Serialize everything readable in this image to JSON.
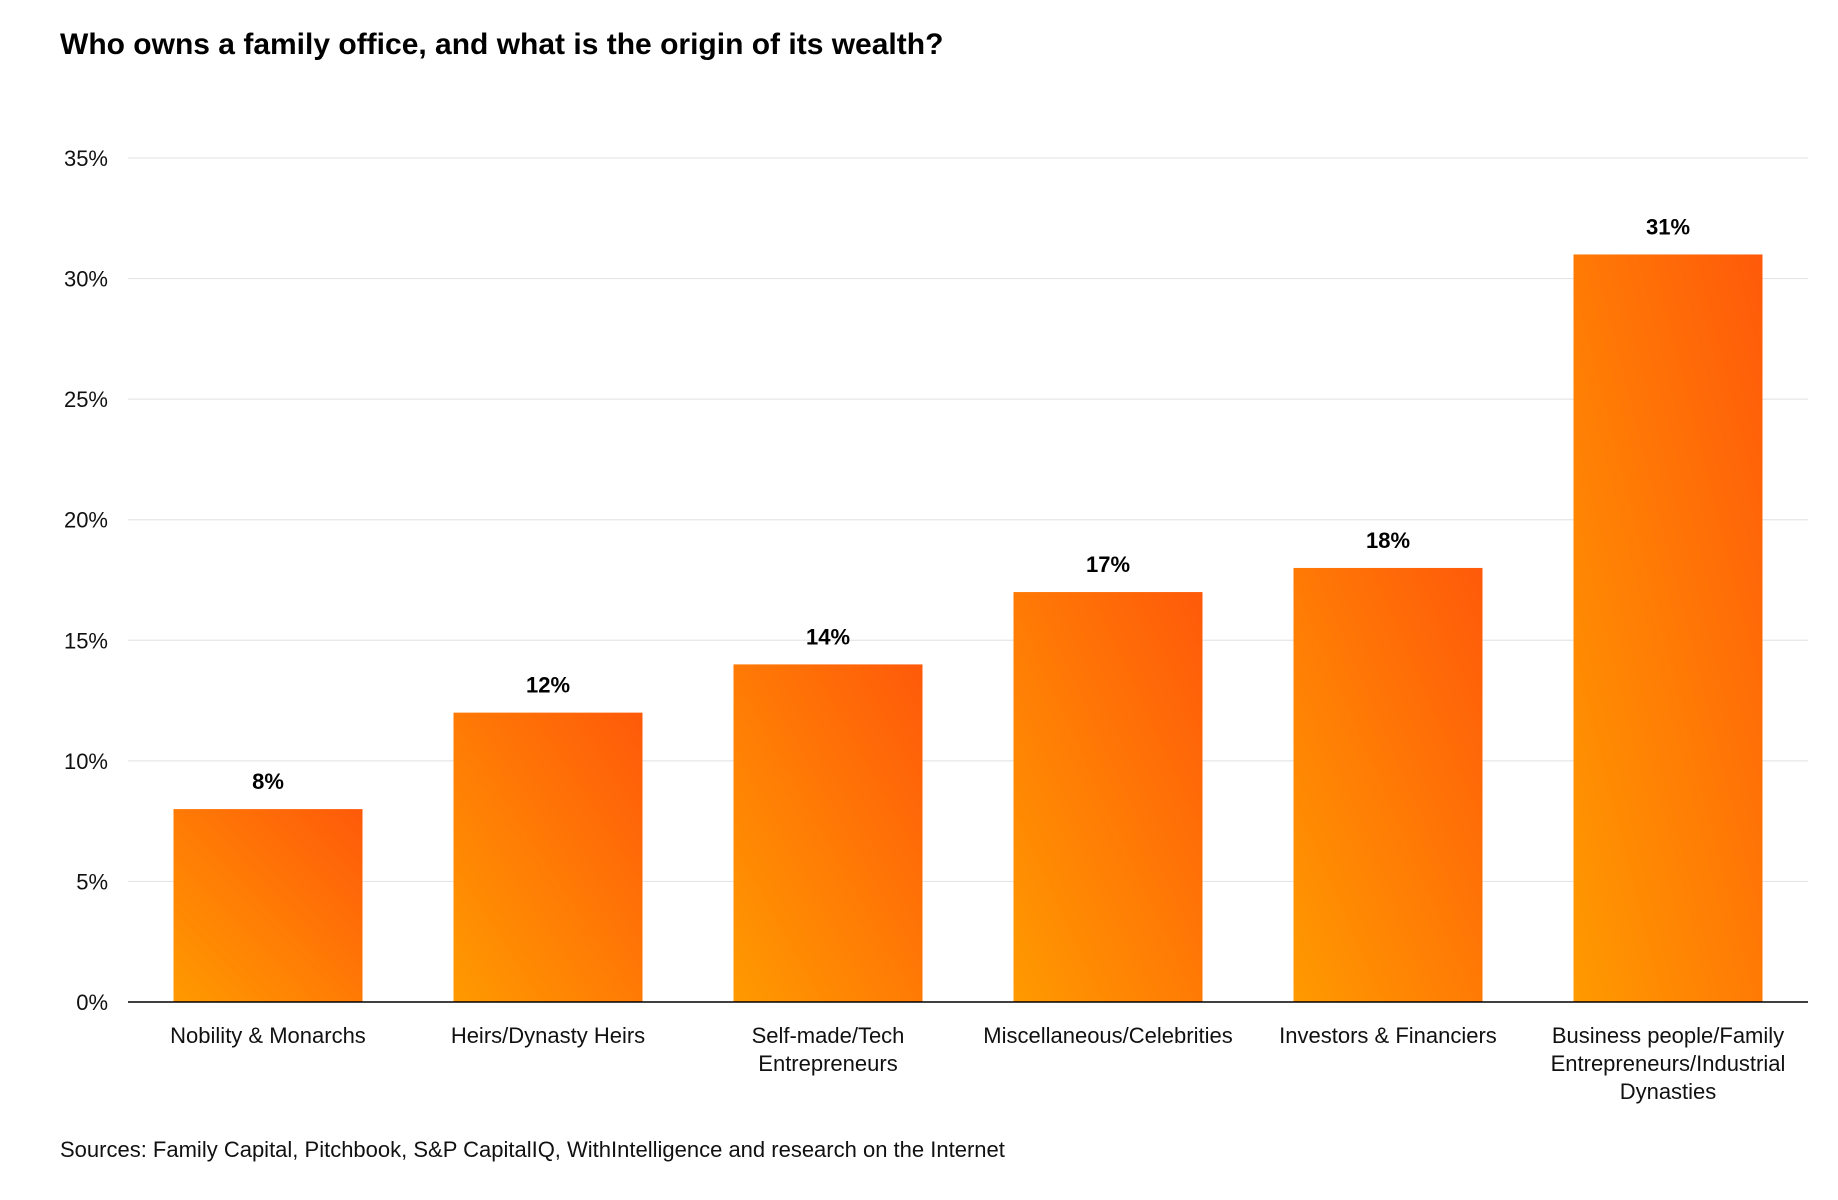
{
  "chart_data": {
    "type": "bar",
    "title": "Who owns a family office, and what is the origin of its wealth?",
    "source": "Sources: Family Capital, Pitchbook, S&P CapitalIQ, WithIntelligence and research on the Internet",
    "xlabel": "",
    "ylabel": "",
    "ylim": [
      0,
      35
    ],
    "yticks": [
      0,
      5,
      10,
      15,
      20,
      25,
      30,
      35
    ],
    "ytick_labels": [
      "0%",
      "5%",
      "10%",
      "15%",
      "20%",
      "25%",
      "30%",
      "35%"
    ],
    "grid": true,
    "categories": [
      [
        "Nobility & Monarchs"
      ],
      [
        "Heirs/Dynasty Heirs"
      ],
      [
        "Self-made/Tech",
        "Entrepreneurs"
      ],
      [
        "Miscellaneous/Celebrities"
      ],
      [
        "Investors & Financiers"
      ],
      [
        "Business people/Family",
        "Entrepreneurs/Industrial",
        "Dynasties"
      ]
    ],
    "values": [
      8,
      12,
      14,
      17,
      18,
      31
    ],
    "value_labels": [
      "8%",
      "12%",
      "14%",
      "17%",
      "18%",
      "31%"
    ],
    "colors": {
      "bar_top": "#ff5a0a",
      "bar_bottom": "#ff9a00",
      "grid": "#e6e6e6",
      "axis": "#000000"
    }
  }
}
